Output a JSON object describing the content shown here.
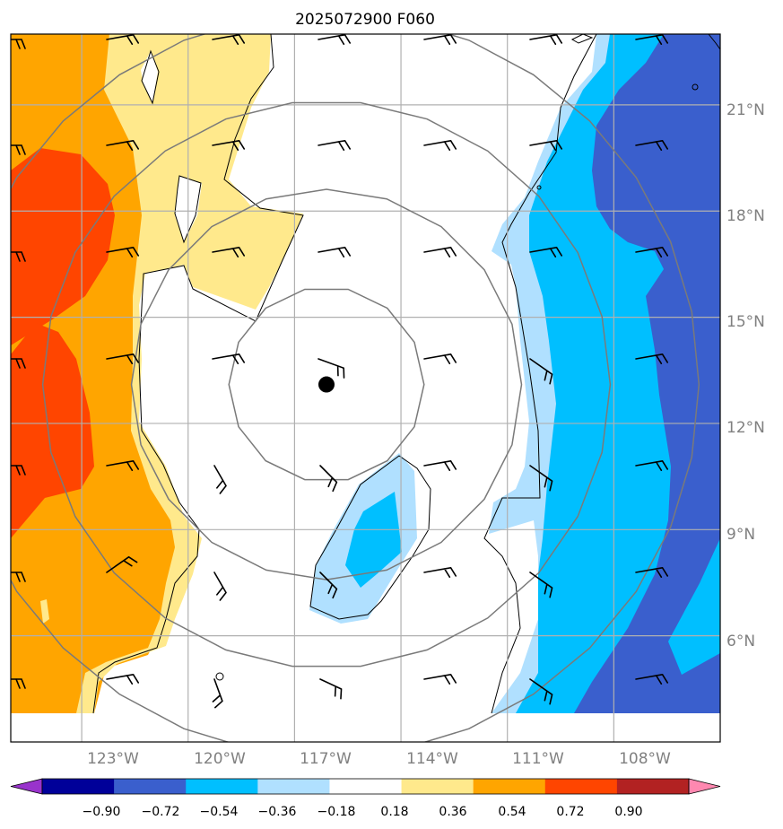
{
  "title": "2025072900 F060",
  "map": {
    "lon_range": [
      -125.0,
      -105.0
    ],
    "lat_range": [
      3.0,
      23.0
    ],
    "storm_center": {
      "lon": -116.1,
      "lat": 13.1
    },
    "grid_lon": [
      -123,
      -120,
      -117,
      -114,
      -111,
      -108
    ],
    "grid_lat": [
      6,
      9,
      12,
      15,
      18,
      21
    ],
    "lon_labels": [
      "123°W",
      "120°W",
      "117°W",
      "114°W",
      "111°W",
      "108°W"
    ],
    "lat_labels": [
      "6°N",
      "9°N",
      "12°N",
      "15°N",
      "18°N",
      "21°N"
    ],
    "range_rings_deg": [
      2.75,
      5.5,
      8.0,
      10.5
    ]
  },
  "colorbar": {
    "ticks": [
      "−0.90",
      "−0.72",
      "−0.54",
      "−0.36",
      "−0.18",
      "0.18",
      "0.36",
      "0.54",
      "0.72",
      "0.90"
    ],
    "colors": [
      "#9933cc",
      "#000099",
      "#3a5fcd",
      "#00bfff",
      "#b0e0ff",
      "#ffffff",
      "#ffe98c",
      "#ffa500",
      "#ff4500",
      "#b22222",
      "#ff88b0"
    ]
  },
  "fill_colors": {
    "orange": "#ffa500",
    "red_orange": "#ff4500",
    "light_yellow": "#ffe98c",
    "light_blue": "#b0e0ff",
    "deep_sky_blue": "#00bfff",
    "royal_blue": "#3a5fcd"
  }
}
